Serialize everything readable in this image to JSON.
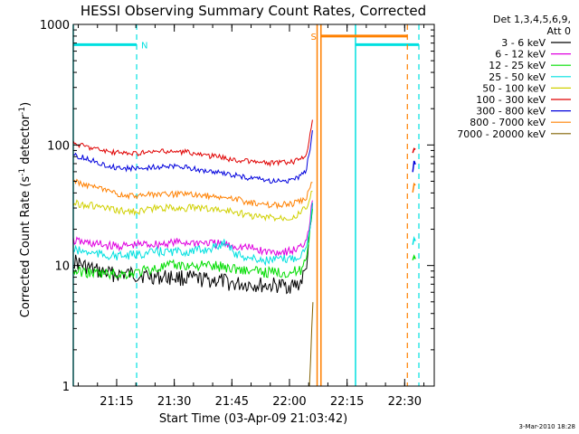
{
  "chart_data": {
    "type": "line",
    "title": "HESSI Observing Summary Count Rates, Corrected",
    "xlabel": "Start Time (03-Apr-09 21:03:42)",
    "ylabel": "Corrected Count Rate (s-1 detector-1)",
    "ylabel_parts": [
      "Corrected Count Rate (s",
      "-1",
      " detector",
      "-1",
      ")"
    ],
    "x_unit": "minutes since 21:03:42",
    "xlim": [
      0,
      94
    ],
    "ylim": [
      1,
      1000
    ],
    "y_scale": "log",
    "x_ticks": [
      {
        "label": "21:15",
        "x": 11.3
      },
      {
        "label": "21:30",
        "x": 26.3
      },
      {
        "label": "21:45",
        "x": 41.3
      },
      {
        "label": "22:00",
        "x": 56.3
      },
      {
        "label": "22:15",
        "x": 71.3
      },
      {
        "label": "22:30",
        "x": 86.3
      }
    ],
    "y_ticks": [
      {
        "label": "1",
        "y": 1
      },
      {
        "label": "10",
        "y": 10
      },
      {
        "label": "100",
        "y": 100
      },
      {
        "label": "1000",
        "y": 1000
      }
    ],
    "legend": {
      "title_lines": [
        "Det 1,3,4,5,6,9,",
        "Att 0"
      ],
      "position": "right",
      "entries": [
        {
          "label": "3 - 6 keV",
          "color": "#000000"
        },
        {
          "label": "6 - 12 keV",
          "color": "#e000e0"
        },
        {
          "label": "12 - 25 keV",
          "color": "#00dd00"
        },
        {
          "label": "25 - 50 keV",
          "color": "#00e0e0"
        },
        {
          "label": "50 - 100 keV",
          "color": "#d0d000"
        },
        {
          "label": "100 - 300 keV",
          "color": "#e00000"
        },
        {
          "label": "300 - 800 keV",
          "color": "#0000dd"
        },
        {
          "label": "800 - 7000 keV",
          "color": "#ff8000"
        },
        {
          "label": "7000 - 20000 keV",
          "color": "#806000"
        }
      ]
    },
    "series": [
      {
        "name": "3 - 6 keV",
        "color": "#000000",
        "x": [
          0,
          3,
          6,
          10,
          14,
          18,
          22,
          26,
          30,
          34,
          38,
          42,
          46,
          50,
          54,
          57,
          59,
          60.5,
          61.5,
          62.3
        ],
        "y": [
          11,
          9.8,
          9,
          8.5,
          8.5,
          8.3,
          8,
          8,
          7.8,
          7.6,
          7.5,
          7,
          7,
          6.8,
          6.8,
          6.8,
          7,
          9,
          16,
          30
        ]
      },
      {
        "name": "6 - 12 keV",
        "color": "#e000e0",
        "x": [
          0,
          3,
          6,
          10,
          14,
          18,
          22,
          26,
          30,
          34,
          38,
          42,
          46,
          50,
          54,
          57,
          59,
          60.5,
          61.5,
          62.3
        ],
        "y": [
          16,
          15.5,
          15,
          14.5,
          14.5,
          15,
          15,
          15.5,
          15.5,
          15.5,
          15,
          14.5,
          14,
          13,
          13,
          13.2,
          14,
          16,
          22,
          35
        ]
      },
      {
        "name": "12 - 25 keV",
        "color": "#00dd00",
        "x": [
          0,
          3,
          6,
          10,
          14,
          18,
          22,
          26,
          30,
          34,
          38,
          42,
          46,
          50,
          54,
          57,
          59,
          60.5,
          61.5,
          62.3
        ],
        "y": [
          9,
          8.8,
          8.6,
          8.5,
          8.5,
          9,
          9.5,
          10,
          10,
          10,
          9.8,
          9.5,
          9,
          8.8,
          8.8,
          8.8,
          9,
          11,
          18,
          32
        ]
      },
      {
        "name": "25 - 50 keV",
        "color": "#00e0e0",
        "x": [
          0,
          3,
          6,
          10,
          14,
          18,
          22,
          26,
          30,
          34,
          38,
          40,
          42,
          46,
          50,
          54,
          57,
          59,
          60.5,
          61.5,
          62.3
        ],
        "y": [
          13.5,
          13,
          12.5,
          12,
          12,
          12.5,
          13,
          13,
          13,
          13.5,
          14.5,
          16,
          12.5,
          11.5,
          11,
          11.2,
          11.5,
          12,
          14,
          20,
          32
        ]
      },
      {
        "name": "50 - 100 keV",
        "color": "#d0d000",
        "x": [
          0,
          3,
          6,
          10,
          14,
          18,
          22,
          26,
          30,
          34,
          38,
          42,
          46,
          50,
          54,
          57,
          59,
          60.5,
          61.5,
          62.3
        ],
        "y": [
          33,
          32,
          31,
          29,
          28,
          28.5,
          30,
          30,
          30,
          30,
          29,
          28,
          26,
          25,
          25,
          25.5,
          27,
          30,
          35,
          42
        ]
      },
      {
        "name": "100 - 300 keV",
        "color": "#e00000",
        "x": [
          0,
          3,
          6,
          10,
          14,
          18,
          22,
          26,
          30,
          34,
          38,
          42,
          46,
          50,
          54,
          57,
          59,
          60.5,
          61.5,
          62.3
        ],
        "y": [
          103,
          98,
          93,
          87,
          85,
          86,
          88,
          88,
          87,
          82,
          80,
          75,
          73,
          71,
          71,
          72,
          75,
          82,
          110,
          170
        ]
      },
      {
        "name": "300 - 800 keV",
        "color": "#0000dd",
        "x": [
          0,
          3,
          6,
          10,
          14,
          18,
          22,
          26,
          30,
          34,
          38,
          42,
          46,
          50,
          54,
          57,
          59,
          60.5,
          61.5,
          62.3
        ],
        "y": [
          82,
          78,
          72,
          66,
          64,
          64,
          66,
          66,
          65,
          61,
          59,
          56,
          53,
          51,
          50,
          51,
          54,
          60,
          85,
          130
        ]
      },
      {
        "name": "800 - 7000 keV",
        "color": "#ff8000",
        "x": [
          0,
          3,
          6,
          10,
          14,
          18,
          22,
          26,
          30,
          34,
          38,
          42,
          46,
          50,
          54,
          57,
          59,
          60.5,
          61.5,
          62.3
        ],
        "y": [
          50,
          47,
          44,
          40,
          38,
          38,
          39,
          39,
          39,
          38,
          37,
          36,
          33,
          32,
          32,
          32.5,
          34,
          36,
          42,
          50
        ]
      },
      {
        "name": "7000 - 20000 keV",
        "color": "#806000",
        "x": [
          61.5,
          61.8,
          62.1,
          62.4
        ],
        "y": [
          1,
          1.6,
          3,
          5
        ]
      }
    ],
    "late_segments": [
      {
        "name": "100 - 300 keV",
        "color": "#e00000",
        "x": [
          88.4,
          88.7,
          89.1
        ],
        "y": [
          85,
          95,
          92
        ]
      },
      {
        "name": "300 - 800 keV",
        "color": "#0000dd",
        "x": [
          88.4,
          88.7,
          89.1
        ],
        "y": [
          60,
          75,
          70
        ]
      },
      {
        "name": "800 - 7000 keV",
        "color": "#ff8000",
        "x": [
          88.4,
          88.7,
          89.1
        ],
        "y": [
          40,
          48,
          46
        ]
      },
      {
        "name": "25 - 50 keV",
        "color": "#00e0e0",
        "x": [
          88.4,
          88.7,
          89.1
        ],
        "y": [
          15,
          17,
          16
        ]
      },
      {
        "name": "12 - 25 keV",
        "color": "#00dd00",
        "x": [
          88.4,
          88.7,
          89.1
        ],
        "y": [
          11,
          12,
          11.5
        ]
      }
    ],
    "markers": {
      "night": {
        "label": "N",
        "color": "#00e0e0",
        "bar_y": 680,
        "bar_ranges": [
          [
            0,
            16.5
          ],
          [
            73.5,
            90
          ]
        ],
        "solid_lines": [
          0,
          73.5
        ],
        "dashed_lines": [
          16.5,
          90
        ]
      },
      "saa": {
        "label": "S",
        "color": "#ff8000",
        "bar_y": 800,
        "bar_ranges": [
          [
            64.5,
            87
          ]
        ],
        "solid_lines": [
          63.5,
          64.5
        ],
        "dashed_lines": [
          87
        ]
      }
    },
    "footer_date": "3-Mar-2010 18:28"
  }
}
